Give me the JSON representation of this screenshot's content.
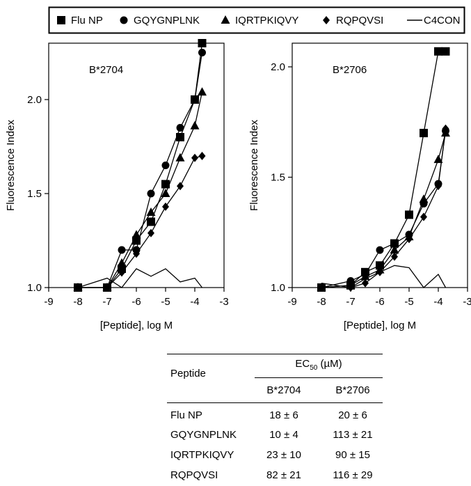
{
  "legend": [
    {
      "name": "Flu NP",
      "marker": "square"
    },
    {
      "name": "GQYGNPLNK",
      "marker": "circle"
    },
    {
      "name": "IQRTPKIQVY",
      "marker": "triangle"
    },
    {
      "name": "RQPQVSI",
      "marker": "diamond"
    },
    {
      "name": "C4CON",
      "marker": "line"
    }
  ],
  "chart_data": [
    {
      "type": "line",
      "annotation": "B*2704",
      "xlabel": "[Peptide], log M",
      "ylabel": "Fluorescence Index",
      "xlim": [
        -9,
        -3
      ],
      "ylim": [
        1.0,
        2.3
      ],
      "xticks": [
        "-9",
        "-8",
        "-7",
        "-6",
        "-5",
        "-4",
        "-3"
      ],
      "yticks": [
        "1.0",
        "1.5",
        "2.0"
      ],
      "series": [
        {
          "name": "Flu NP",
          "x": [
            -8,
            -7,
            -6.5,
            -6,
            -5.5,
            -5,
            -4.5,
            -4,
            -3.75
          ],
          "y": [
            1.0,
            1.0,
            1.1,
            1.25,
            1.35,
            1.55,
            1.8,
            2.0,
            2.3
          ]
        },
        {
          "name": "GQYGNPLNK",
          "x": [
            -8,
            -7,
            -6.5,
            -6,
            -5.5,
            -5,
            -4.5,
            -4,
            -3.75
          ],
          "y": [
            1.0,
            1.0,
            1.2,
            1.2,
            1.5,
            1.65,
            1.85,
            2.0,
            2.25
          ]
        },
        {
          "name": "IQRTPKIQVY",
          "x": [
            -8,
            -7,
            -6.5,
            -6,
            -5.5,
            -5,
            -4.5,
            -4,
            -3.75
          ],
          "y": [
            1.0,
            1.0,
            1.13,
            1.28,
            1.4,
            1.5,
            1.69,
            1.86,
            2.04
          ]
        },
        {
          "name": "RQPQVSI",
          "x": [
            -8,
            -7,
            -6.5,
            -6,
            -5.5,
            -5,
            -4.5,
            -4,
            -3.75
          ],
          "y": [
            1.0,
            1.0,
            1.08,
            1.18,
            1.29,
            1.43,
            1.54,
            1.69,
            1.7
          ]
        },
        {
          "name": "C4CON",
          "x": [
            -8,
            -7,
            -6.5,
            -6,
            -5.5,
            -5,
            -4.5,
            -4,
            -3.75
          ],
          "y": [
            1.0,
            1.05,
            1.0,
            1.1,
            1.06,
            1.1,
            1.03,
            1.05,
            1.0
          ]
        }
      ]
    },
    {
      "type": "line",
      "annotation": "B*2706",
      "xlabel": "[Peptide], log M",
      "ylabel": "Fluorescence Index",
      "xlim": [
        -9,
        -3
      ],
      "ylim": [
        1.0,
        2.1
      ],
      "xticks": [
        "-9",
        "-8",
        "-7",
        "-6",
        "-5",
        "-4",
        "-3"
      ],
      "yticks": [
        "1.0",
        "1.5",
        "2.0"
      ],
      "series": [
        {
          "name": "Flu NP",
          "x": [
            -8,
            -7,
            -6.5,
            -6,
            -5.5,
            -5,
            -4.5,
            -4,
            -3.75
          ],
          "y": [
            1.0,
            1.01,
            1.07,
            1.1,
            1.2,
            1.33,
            1.7,
            2.07,
            2.07
          ]
        },
        {
          "name": "GQYGNPLNK",
          "x": [
            -8,
            -7,
            -6.5,
            -6,
            -5.5,
            -5,
            -4.5,
            -4,
            -3.75
          ],
          "y": [
            1.0,
            1.03,
            1.06,
            1.17,
            1.2,
            1.24,
            1.38,
            1.47,
            1.71
          ]
        },
        {
          "name": "IQRTPKIQVY",
          "x": [
            -8,
            -7,
            -6.5,
            -6,
            -5.5,
            -5,
            -4.5,
            -4,
            -3.75
          ],
          "y": [
            1.0,
            1.01,
            1.05,
            1.08,
            1.17,
            1.23,
            1.4,
            1.58,
            1.7
          ]
        },
        {
          "name": "RQPQVSI",
          "x": [
            -8,
            -7,
            -6.5,
            -6,
            -5.5,
            -5,
            -4.5,
            -4,
            -3.75
          ],
          "y": [
            1.0,
            1.0,
            1.02,
            1.07,
            1.14,
            1.22,
            1.32,
            1.46,
            1.72
          ]
        },
        {
          "name": "C4CON",
          "x": [
            -8,
            -7,
            -6.5,
            -6,
            -5.5,
            -5,
            -4.5,
            -4,
            -3.75
          ],
          "y": [
            1.02,
            1.0,
            1.04,
            1.07,
            1.1,
            1.09,
            1.0,
            1.06,
            1.0
          ]
        }
      ]
    },
    {
      "type": "table",
      "header": {
        "peptide": "Peptide",
        "ec50": "EC50 (µM)",
        "ec50_base": "EC",
        "ec50_sub": "50",
        "ec50_unit": " (µM)",
        "col1": "B*2704",
        "col2": "B*2706"
      },
      "rows": [
        {
          "peptide": "Flu NP",
          "b2704": "18 ± 6",
          "b2706": "20 ± 6"
        },
        {
          "peptide": "GQYGNPLNK",
          "b2704": "10 ± 4",
          "b2706": "113 ± 21"
        },
        {
          "peptide": "IQRTPKIQVY",
          "b2704": "23 ± 10",
          "b2706": "90 ± 15"
        },
        {
          "peptide": "RQPQVSI",
          "b2704": "82 ± 21",
          "b2706": "116 ± 29"
        }
      ]
    }
  ]
}
